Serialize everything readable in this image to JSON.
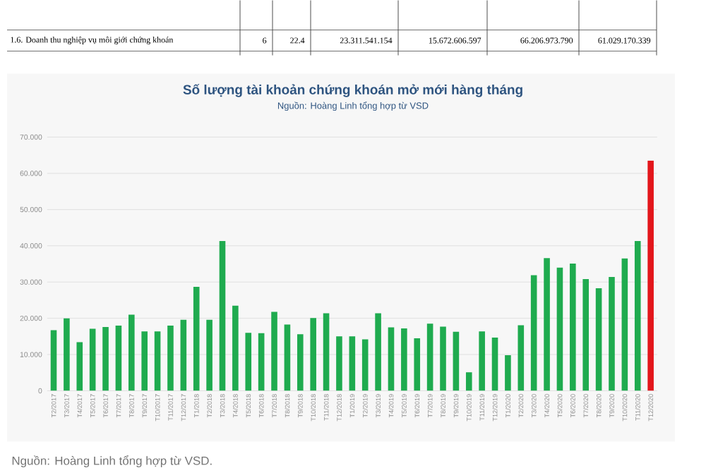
{
  "chart_data": {
    "type": "bar",
    "title": "Số lượng tài khoản chứng khoán mở mới hàng tháng",
    "subtitle": "Nguồn: Hoàng Linh tổng hợp từ VSD",
    "categories": [
      "T2/2017",
      "T3/2017",
      "T4/2017",
      "T5/2017",
      "T6/2017",
      "T7/2017",
      "T8/2017",
      "T9/2017",
      "T10/2017",
      "T11/2017",
      "T12/2017",
      "T1/2018",
      "T2/2018",
      "T3/2018",
      "T4/2018",
      "T5/2018",
      "T6/2018",
      "T7/2018",
      "T8/2018",
      "T9/2018",
      "T10/2018",
      "T11/2018",
      "T12/2018",
      "T1/2019",
      "T2/2019",
      "T3/2019",
      "T4/2019",
      "T5/2019",
      "T6/2019",
      "T7/2019",
      "T8/2019",
      "T9/2019",
      "T10/2019",
      "T11/2019",
      "T12/2019",
      "T1/2020",
      "T2/2020",
      "T3/2020",
      "T4/2020",
      "T5/2020",
      "T6/2020",
      "T7/2020",
      "T8/2020",
      "T9/2020",
      "T10/2020",
      "T11/2020",
      "T12/2020"
    ],
    "values": [
      16700,
      20000,
      13400,
      17100,
      17600,
      18000,
      21000,
      16400,
      16400,
      18000,
      19600,
      28700,
      19600,
      41300,
      23500,
      16000,
      15900,
      21800,
      18300,
      15600,
      20100,
      21400,
      15000,
      15000,
      14200,
      21400,
      17500,
      17200,
      14500,
      18500,
      17700,
      16300,
      5100,
      16400,
      14700,
      9800,
      18100,
      31900,
      36600,
      34000,
      35100,
      30800,
      28300,
      31400,
      36500,
      41300,
      63500
    ],
    "colors": [
      "#1fab4f",
      "#1fab4f",
      "#1fab4f",
      "#1fab4f",
      "#1fab4f",
      "#1fab4f",
      "#1fab4f",
      "#1fab4f",
      "#1fab4f",
      "#1fab4f",
      "#1fab4f",
      "#1fab4f",
      "#1fab4f",
      "#1fab4f",
      "#1fab4f",
      "#1fab4f",
      "#1fab4f",
      "#1fab4f",
      "#1fab4f",
      "#1fab4f",
      "#1fab4f",
      "#1fab4f",
      "#1fab4f",
      "#1fab4f",
      "#1fab4f",
      "#1fab4f",
      "#1fab4f",
      "#1fab4f",
      "#1fab4f",
      "#1fab4f",
      "#1fab4f",
      "#1fab4f",
      "#1fab4f",
      "#1fab4f",
      "#1fab4f",
      "#1fab4f",
      "#1fab4f",
      "#1fab4f",
      "#1fab4f",
      "#1fab4f",
      "#1fab4f",
      "#1fab4f",
      "#1fab4f",
      "#1fab4f",
      "#1fab4f",
      "#1fab4f",
      "#e3161b"
    ],
    "ylim": [
      0,
      70000
    ],
    "yticks": [
      {
        "value": 0,
        "label": "0"
      },
      {
        "value": 10000,
        "label": "10.000"
      },
      {
        "value": 20000,
        "label": "20.000"
      },
      {
        "value": 30000,
        "label": "30.000"
      },
      {
        "value": 40000,
        "label": "40.000"
      },
      {
        "value": 50000,
        "label": "50.000"
      },
      {
        "value": 60000,
        "label": "60.000"
      },
      {
        "value": 70000,
        "label": "70.000"
      }
    ],
    "grid": "y",
    "annotations": [
      "1.6. Doanh thu nghiệp vụ môi giới chứng khoán",
      "6",
      "22.4",
      "23.311.541.154",
      "15.672.606.597",
      "66.206.973.790",
      "61.029.170.339",
      "Nguồn: Hoàng Linh tổng hợp từ VSD."
    ]
  }
}
